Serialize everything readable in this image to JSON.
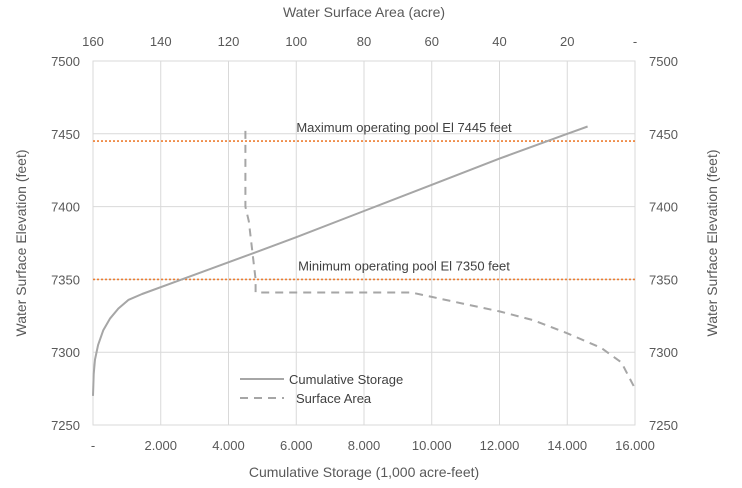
{
  "chart_data": {
    "type": "line",
    "title": "",
    "xlabel": "Cumulative Storage (1,000 acre-feet)",
    "x2label": "Water Surface Area (acre)",
    "ylabel": "Water Surface Elevation (feet)",
    "y2label": "Water Surface Elevation (feet)",
    "xlim": [
      0,
      16000
    ],
    "x2lim": [
      160,
      0
    ],
    "ylim": [
      7250,
      7500
    ],
    "grid": true,
    "legend_position": "bottom-left",
    "x_ticks": [
      {
        "value": 0,
        "label": "-"
      },
      {
        "value": 2000,
        "label": "2.000"
      },
      {
        "value": 4000,
        "label": "4.000"
      },
      {
        "value": 6000,
        "label": "6.000"
      },
      {
        "value": 8000,
        "label": "8.000"
      },
      {
        "value": 10000,
        "label": "10.000"
      },
      {
        "value": 12000,
        "label": "12.000"
      },
      {
        "value": 14000,
        "label": "14.000"
      },
      {
        "value": 16000,
        "label": "16.000"
      }
    ],
    "x2_ticks": [
      {
        "value": 160,
        "label": "160"
      },
      {
        "value": 140,
        "label": "140"
      },
      {
        "value": 120,
        "label": "120"
      },
      {
        "value": 100,
        "label": "100"
      },
      {
        "value": 80,
        "label": "80"
      },
      {
        "value": 60,
        "label": "60"
      },
      {
        "value": 40,
        "label": "40"
      },
      {
        "value": 20,
        "label": "20"
      },
      {
        "value": 0,
        "label": "-"
      }
    ],
    "y_ticks": [
      {
        "value": 7250,
        "label": "7250"
      },
      {
        "value": 7300,
        "label": "7300"
      },
      {
        "value": 7350,
        "label": "7350"
      },
      {
        "value": 7400,
        "label": "7400"
      },
      {
        "value": 7450,
        "label": "7450"
      },
      {
        "value": 7500,
        "label": "7500"
      }
    ],
    "series": [
      {
        "name": "Cumulative Storage",
        "axis": "bottom",
        "color": "#a6a6a6",
        "style": "solid",
        "points": [
          [
            0,
            7270
          ],
          [
            20,
            7285
          ],
          [
            60,
            7295
          ],
          [
            150,
            7305
          ],
          [
            300,
            7315
          ],
          [
            500,
            7323
          ],
          [
            750,
            7330
          ],
          [
            1050,
            7336
          ],
          [
            1450,
            7340
          ],
          [
            2500,
            7349
          ],
          [
            4500,
            7366
          ],
          [
            6000,
            7379
          ],
          [
            8000,
            7397
          ],
          [
            10000,
            7415
          ],
          [
            12000,
            7433
          ],
          [
            14000,
            7450
          ],
          [
            14600,
            7455
          ]
        ]
      },
      {
        "name": "Surface Area",
        "axis": "top",
        "color": "#a6a6a6",
        "style": "dashed",
        "points": [
          [
            115,
            7452
          ],
          [
            115,
            7400
          ],
          [
            114,
            7390
          ],
          [
            113,
            7370
          ],
          [
            112,
            7350
          ],
          [
            112,
            7341
          ],
          [
            100,
            7341
          ],
          [
            80,
            7341
          ],
          [
            66,
            7341
          ],
          [
            60,
            7338
          ],
          [
            50,
            7333
          ],
          [
            40,
            7328
          ],
          [
            30,
            7322
          ],
          [
            20,
            7313
          ],
          [
            10,
            7303
          ],
          [
            4,
            7293
          ],
          [
            0,
            7275
          ]
        ]
      }
    ],
    "reference_lines": [
      {
        "y": 7445,
        "label": "Maximum operating pool El 7445 feet",
        "color": "#ed7d31"
      },
      {
        "y": 7350,
        "label": "Minimum operating pool El 7350 feet",
        "color": "#ed7d31"
      }
    ]
  }
}
